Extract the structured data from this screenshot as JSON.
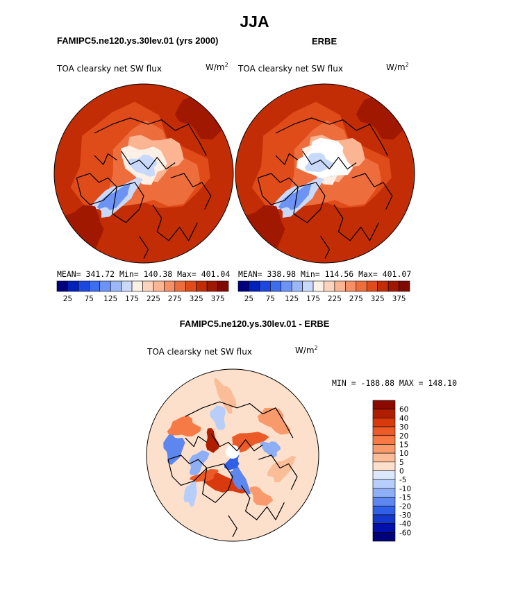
{
  "title": "JJA",
  "panels": [
    {
      "header": "FAMIPC5.ne120.ys.30lev.01 (yrs 2000)",
      "variable": "TOA clearsky net SW flux",
      "units_base": "W/m",
      "units_exp": "2",
      "stats": "MEAN= 341.72   Min= 140.38   Max= 401.04"
    },
    {
      "header": "ERBE",
      "variable": "TOA clearsky net SW flux",
      "units_base": "W/m",
      "units_exp": "2",
      "stats": "MEAN= 338.98   Min= 114.56   Max= 401.07"
    },
    {
      "header": "FAMIPC5.ne120.ys.30lev.01 - ERBE",
      "variable": "TOA clearsky net SW flux",
      "units_base": "W/m",
      "units_exp": "2",
      "stats": "MIN = -188.88 MAX = 148.10"
    }
  ],
  "chart_data": [
    {
      "type": "heatmap",
      "projection": "polar-stereographic-north",
      "title": "TOA clearsky net SW flux",
      "mean": 341.72,
      "min": 140.38,
      "max": 401.04,
      "colorbar": {
        "orientation": "horizontal",
        "tick_labels": [
          "25",
          "75",
          "125",
          "175",
          "225",
          "275",
          "325",
          "375"
        ],
        "colors": [
          "#00007f",
          "#0022bb",
          "#1d48df",
          "#3d6ef0",
          "#6d93f4",
          "#9bb7f8",
          "#c8d9fb",
          "#fbf0e6",
          "#fcd3bd",
          "#fbb593",
          "#f69066",
          "#ee6d3d",
          "#e04b1a",
          "#c22d05",
          "#a01800",
          "#7f0a00"
        ]
      }
    },
    {
      "type": "heatmap",
      "projection": "polar-stereographic-north",
      "title": "TOA clearsky net SW flux",
      "mean": 338.98,
      "min": 114.56,
      "max": 401.07,
      "colorbar": {
        "orientation": "horizontal",
        "tick_labels": [
          "25",
          "75",
          "125",
          "175",
          "225",
          "275",
          "325",
          "375"
        ],
        "colors": [
          "#00007f",
          "#0022bb",
          "#1d48df",
          "#3d6ef0",
          "#6d93f4",
          "#9bb7f8",
          "#c8d9fb",
          "#fbf0e6",
          "#fcd3bd",
          "#fbb593",
          "#f69066",
          "#ee6d3d",
          "#e04b1a",
          "#c22d05",
          "#a01800",
          "#7f0a00"
        ]
      }
    },
    {
      "type": "heatmap",
      "projection": "polar-stereographic-north",
      "title": "TOA clearsky net SW flux",
      "min": -188.88,
      "max": 148.1,
      "colorbar": {
        "orientation": "vertical",
        "tick_labels": [
          "60",
          "40",
          "30",
          "20",
          "15",
          "10",
          "5",
          "0",
          "-5",
          "-10",
          "-15",
          "-20",
          "-30",
          "-40",
          "-60"
        ],
        "colors": [
          "#8a0a00",
          "#b01e00",
          "#d83a0e",
          "#ec5a28",
          "#f57a45",
          "#f99a6c",
          "#fbbd98",
          "#fde0cc",
          "#dbe8fb",
          "#b8cefa",
          "#8eaff6",
          "#5e86ef",
          "#3160e8",
          "#1438cf",
          "#0010a8",
          "#00007a"
        ]
      }
    }
  ]
}
